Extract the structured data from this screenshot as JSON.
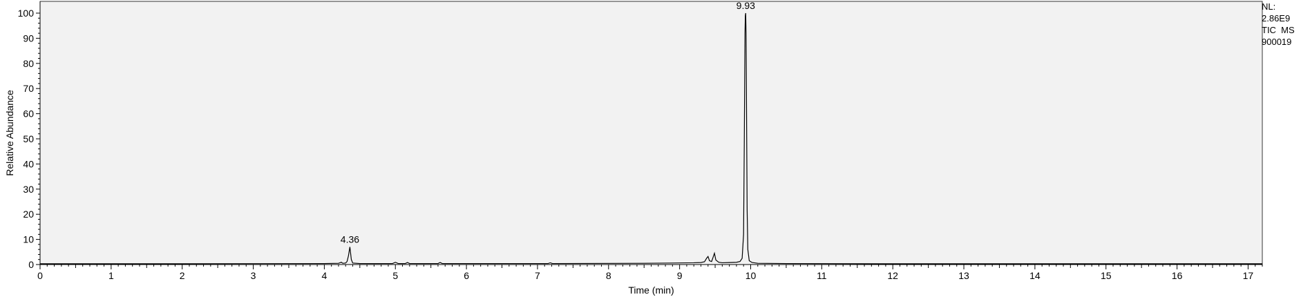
{
  "chart_data": {
    "type": "line",
    "title": "",
    "xlabel": "Time (min)",
    "ylabel": "Relative Abundance",
    "xlim": [
      0,
      17.2
    ],
    "ylim": [
      0,
      100
    ],
    "x_ticks": [
      0,
      1,
      2,
      3,
      4,
      5,
      6,
      7,
      8,
      9,
      10,
      11,
      12,
      13,
      14,
      15,
      16,
      17
    ],
    "y_ticks": [
      0,
      10,
      20,
      30,
      40,
      50,
      60,
      70,
      80,
      90,
      100
    ],
    "grid": false,
    "legend": "none",
    "colors": {
      "plot_background": "#f2f2f2",
      "trace": "#000000"
    },
    "peak_labels": [
      {
        "x": 4.36,
        "y": 7,
        "text": "4.36"
      },
      {
        "x": 9.93,
        "y": 100,
        "text": "9.93"
      }
    ],
    "series": [
      {
        "x": [
          0,
          2.0,
          4.0,
          4.2,
          4.24,
          4.26,
          4.3,
          4.32,
          4.34,
          4.36,
          4.38,
          4.4,
          4.5,
          4.96,
          5.0,
          5.04,
          5.14,
          5.17,
          5.2,
          5.6,
          5.63,
          5.66,
          6.0,
          7.15,
          7.18,
          7.21,
          8.5,
          8.9,
          9.2,
          9.3,
          9.35,
          9.38,
          9.4,
          9.42,
          9.45,
          9.47,
          9.49,
          9.51,
          9.55,
          9.6,
          9.7,
          9.8,
          9.85,
          9.88,
          9.9,
          9.91,
          9.92,
          9.925,
          9.93,
          9.935,
          9.94,
          9.95,
          9.96,
          9.98,
          10.02,
          10.1,
          10.5,
          12,
          14,
          16,
          17.2
        ],
        "y": [
          0.3,
          0.3,
          0.4,
          0.5,
          0.9,
          0.5,
          0.6,
          1.2,
          3.5,
          7.0,
          2.0,
          0.6,
          0.4,
          0.4,
          0.9,
          0.4,
          0.4,
          0.8,
          0.4,
          0.4,
          0.8,
          0.4,
          0.4,
          0.4,
          0.7,
          0.4,
          0.5,
          0.6,
          0.7,
          0.8,
          1.1,
          2.5,
          3.2,
          1.5,
          1.2,
          2.8,
          4.5,
          1.8,
          0.9,
          0.7,
          0.8,
          0.9,
          1.2,
          2.5,
          12,
          48,
          92,
          99,
          100,
          92,
          70,
          22,
          6,
          1.5,
          0.8,
          0.5,
          0.4,
          0.3,
          0.3,
          0.3,
          0.3
        ]
      }
    ]
  },
  "info": {
    "nl_label": "NL:",
    "nl_value": "2.86E9",
    "scan": "TIC  MS",
    "file": "900019"
  }
}
